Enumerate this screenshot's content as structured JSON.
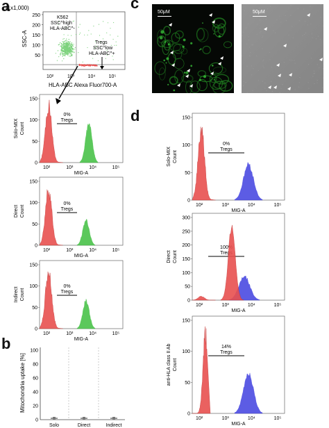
{
  "figure": {
    "panel_labels": {
      "a": "a",
      "b": "b",
      "c": "c",
      "d": "d"
    }
  },
  "panel_a": {
    "scatter": {
      "ylabel": "SSC-A",
      "xlabel": "HLA-ABC Alexa Fluor700-A",
      "scale_note": "(1x1,000)",
      "y_ticks": [
        "250",
        "200",
        "150",
        "100",
        "50"
      ],
      "x_ticks": [
        "10²",
        "10³",
        "10⁴",
        "10⁵"
      ],
      "gate_k562_lines": [
        "K562",
        "SSC^high",
        "HLA-ABC^-"
      ],
      "gate_tregs_lines": [
        "Tregs",
        "SSC^low",
        "HLA-ABC^+"
      ]
    },
    "histograms": [
      {
        "condition": "Solo-MIX",
        "ylabel": "Count",
        "xlabel": "MIG-A",
        "pct": "0%",
        "gate": "Tregs",
        "y_ticks": [
          "150",
          "100",
          "50",
          "0"
        ],
        "x_ticks": [
          "10²",
          "10³",
          "10⁴",
          "10⁵"
        ]
      },
      {
        "condition": "Direct",
        "ylabel": "Count",
        "xlabel": "MIG-A",
        "pct": "0%",
        "gate": "Tregs",
        "y_ticks": [
          "150",
          "100",
          "50",
          "0"
        ],
        "x_ticks": [
          "10²",
          "10³",
          "10⁴",
          "10⁵"
        ]
      },
      {
        "condition": "Indirect",
        "ylabel": "Count",
        "xlabel": "MIG-A",
        "pct": "0%",
        "gate": "Tregs",
        "y_ticks": [
          "150",
          "100",
          "50",
          "0"
        ],
        "x_ticks": [
          "10²",
          "10³",
          "10⁴",
          "10⁵"
        ]
      }
    ]
  },
  "panel_b": {
    "ylabel": "Mitochondria uptake [%]",
    "y_ticks": [
      "100",
      "80",
      "60",
      "40",
      "20",
      "0"
    ],
    "categories": [
      "Solo",
      "Direct",
      "Indirect"
    ],
    "values": [
      0,
      0,
      0
    ]
  },
  "panel_c": {
    "scalebar_left": "50μM",
    "scalebar_right": "50μM"
  },
  "panel_d": {
    "histograms": [
      {
        "condition": "Solo-MIX",
        "ylabel": "Count",
        "xlabel": "MIG-A",
        "pct": "0%",
        "gate": "Tregs",
        "y_ticks": [
          "150",
          "100",
          "50",
          "0"
        ],
        "x_ticks": [
          "10²",
          "10³",
          "10⁴",
          "10⁵"
        ]
      },
      {
        "condition": "Direct",
        "ylabel": "Count",
        "xlabel": "MIG-A",
        "pct": "100%",
        "gate": "Tregs",
        "y_ticks": [
          "300",
          "250",
          "200",
          "150",
          "100",
          "50",
          "0"
        ],
        "x_ticks": [
          "10²",
          "10³",
          "10⁴",
          "10⁵"
        ]
      },
      {
        "condition": "anti-HLA class II Ab",
        "ylabel": "Count",
        "xlabel": "MIG-A",
        "pct": "14%",
        "gate": "Tregs",
        "y_ticks": [
          "150",
          "100",
          "50",
          "0"
        ],
        "x_ticks": [
          "10²",
          "10³",
          "10⁴",
          "10⁵"
        ]
      }
    ]
  },
  "colors": {
    "k562_red": "#e8504f",
    "mig_green": "#3fbf3f",
    "mig_blue": "#4040e0",
    "gate_scatter": "#7ed37e",
    "microscopy_bg": "#050805",
    "brightfield_bg": "#8a8a8a"
  },
  "chart_data": [
    {
      "type": "bar",
      "title": "",
      "ylabel": "Mitochondria uptake [%]",
      "categories": [
        "Solo",
        "Direct",
        "Indirect"
      ],
      "values": [
        0,
        0,
        0
      ],
      "ylim": [
        0,
        100
      ]
    }
  ]
}
